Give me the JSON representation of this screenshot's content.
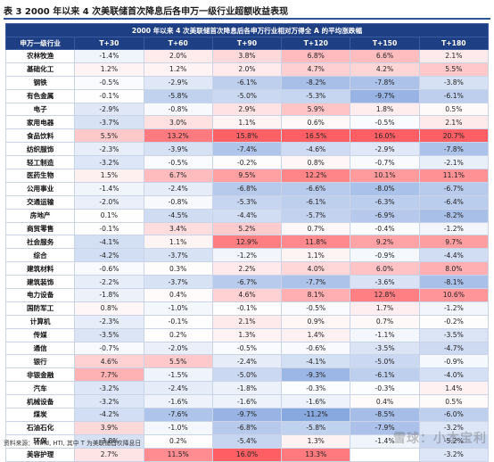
{
  "caption": "表 3  2000 年以来 4 次美联储首次降息后各申万一级行业超额收益表现",
  "table": {
    "title": "2000 年以来 4 次美联储首次降息后各申万行业相对万得全 A 的平均涨跌幅",
    "headers": [
      "申万一级行业",
      "T+30",
      "T+60",
      "T+90",
      "T+120",
      "T+150",
      "T+180"
    ],
    "rows": [
      {
        "name": "农林牧渔",
        "values": [
          "-1.4%",
          "2.0%",
          "3.8%",
          "6.8%",
          "6.6%",
          "2.1%"
        ],
        "nums": [
          -1.4,
          2.0,
          3.8,
          6.8,
          6.6,
          2.1
        ]
      },
      {
        "name": "基础化工",
        "values": [
          "1.2%",
          "1.2%",
          "2.0%",
          "4.7%",
          "4.2%",
          "5.5%"
        ],
        "nums": [
          1.2,
          1.2,
          2.0,
          4.7,
          4.2,
          5.5
        ]
      },
      {
        "name": "钢铁",
        "values": [
          "-0.5%",
          "-2.9%",
          "-6.1%",
          "-8.2%",
          "-7.8%",
          "-3.8%"
        ],
        "nums": [
          -0.5,
          -2.9,
          -6.1,
          -8.2,
          -7.8,
          -3.8
        ]
      },
      {
        "name": "有色金属",
        "values": [
          "-0.1%",
          "-5.8%",
          "-5.0%",
          "-5.3%",
          "-9.7%",
          "-6.1%"
        ],
        "nums": [
          -0.1,
          -5.8,
          -5.0,
          -5.3,
          -9.7,
          -6.1
        ]
      },
      {
        "name": "电子",
        "values": [
          "-2.9%",
          "-0.8%",
          "2.9%",
          "5.9%",
          "1.8%",
          "0.5%"
        ],
        "nums": [
          -2.9,
          -0.8,
          2.9,
          5.9,
          1.8,
          0.5
        ]
      },
      {
        "name": "家用电器",
        "values": [
          "-3.7%",
          "3.0%",
          "1.1%",
          "0.6%",
          "-0.5%",
          "2.1%"
        ],
        "nums": [
          -3.7,
          3.0,
          1.1,
          0.6,
          -0.5,
          2.1
        ]
      },
      {
        "name": "食品饮料",
        "values": [
          "5.5%",
          "13.2%",
          "15.8%",
          "16.5%",
          "16.0%",
          "20.7%"
        ],
        "nums": [
          5.5,
          13.2,
          15.8,
          16.5,
          16.0,
          20.7
        ]
      },
      {
        "name": "纺织服饰",
        "values": [
          "-2.3%",
          "-3.9%",
          "-7.4%",
          "-4.6%",
          "-2.9%",
          "-7.8%"
        ],
        "nums": [
          -2.3,
          -3.9,
          -7.4,
          -4.6,
          -2.9,
          -7.8
        ]
      },
      {
        "name": "轻工制造",
        "values": [
          "-3.2%",
          "-0.5%",
          "-0.2%",
          "0.8%",
          "-0.7%",
          "-2.1%"
        ],
        "nums": [
          -3.2,
          -0.5,
          -0.2,
          0.8,
          -0.7,
          -2.1
        ]
      },
      {
        "name": "医药生物",
        "values": [
          "1.5%",
          "6.7%",
          "9.5%",
          "12.2%",
          "10.1%",
          "11.1%"
        ],
        "nums": [
          1.5,
          6.7,
          9.5,
          12.2,
          10.1,
          11.1
        ]
      },
      {
        "name": "公用事业",
        "values": [
          "-1.4%",
          "-2.4%",
          "-6.8%",
          "-6.6%",
          "-8.0%",
          "-6.7%"
        ],
        "nums": [
          -1.4,
          -2.4,
          -6.8,
          -6.6,
          -8.0,
          -6.7
        ]
      },
      {
        "name": "交通运输",
        "values": [
          "-2.0%",
          "-0.8%",
          "-5.3%",
          "-6.1%",
          "-6.3%",
          "-6.4%"
        ],
        "nums": [
          -2.0,
          -0.8,
          -5.3,
          -6.1,
          -6.3,
          -6.4
        ]
      },
      {
        "name": "房地产",
        "values": [
          "0.1%",
          "-4.5%",
          "-4.4%",
          "-5.7%",
          "-6.9%",
          "-8.2%"
        ],
        "nums": [
          0.1,
          -4.5,
          -4.4,
          -5.7,
          -6.9,
          -8.2
        ]
      },
      {
        "name": "商贸零售",
        "values": [
          "-0.1%",
          "3.4%",
          "5.2%",
          "0.7%",
          "-0.4%",
          "-1.2%"
        ],
        "nums": [
          -0.1,
          3.4,
          5.2,
          0.7,
          -0.4,
          -1.2
        ]
      },
      {
        "name": "社会服务",
        "values": [
          "-4.1%",
          "1.1%",
          "12.9%",
          "11.8%",
          "9.2%",
          "9.7%"
        ],
        "nums": [
          -4.1,
          1.1,
          12.9,
          11.8,
          9.2,
          9.7
        ]
      },
      {
        "name": "综合",
        "values": [
          "-4.2%",
          "-3.7%",
          "-1.2%",
          "1.1%",
          "-0.9%",
          "-4.4%"
        ],
        "nums": [
          -4.2,
          -3.7,
          -1.2,
          1.1,
          -0.9,
          -4.4
        ]
      },
      {
        "name": "建筑材料",
        "values": [
          "-0.6%",
          "0.3%",
          "2.2%",
          "4.0%",
          "6.0%",
          "8.0%"
        ],
        "nums": [
          -0.6,
          0.3,
          2.2,
          4.0,
          6.0,
          8.0
        ]
      },
      {
        "name": "建筑装饰",
        "values": [
          "-2.2%",
          "-3.7%",
          "-6.7%",
          "-7.7%",
          "-3.6%",
          "-8.1%"
        ],
        "nums": [
          -2.2,
          -3.7,
          -6.7,
          -7.7,
          -3.6,
          -8.1
        ]
      },
      {
        "name": "电力设备",
        "values": [
          "-1.8%",
          "0.4%",
          "4.6%",
          "8.1%",
          "12.8%",
          "10.6%"
        ],
        "nums": [
          -1.8,
          0.4,
          4.6,
          8.1,
          12.8,
          10.6
        ]
      },
      {
        "name": "国防军工",
        "values": [
          "0.8%",
          "-1.0%",
          "-0.1%",
          "-0.5%",
          "1.7%",
          "-1.2%"
        ],
        "nums": [
          0.8,
          -1.0,
          -0.1,
          -0.5,
          1.7,
          -1.2
        ]
      },
      {
        "name": "计算机",
        "values": [
          "-2.3%",
          "-0.1%",
          "2.1%",
          "0.9%",
          "0.7%",
          "-0.2%"
        ],
        "nums": [
          -2.3,
          -0.1,
          2.1,
          0.9,
          0.7,
          -0.2
        ]
      },
      {
        "name": "传媒",
        "values": [
          "-3.5%",
          "0.2%",
          "1.3%",
          "1.4%",
          "-1.1%",
          "-3.5%"
        ],
        "nums": [
          -3.5,
          0.2,
          1.3,
          1.4,
          -1.1,
          -3.5
        ]
      },
      {
        "name": "通信",
        "values": [
          "-0.7%",
          "-2.0%",
          "-0.5%",
          "-0.6%",
          "-3.5%",
          "-4.7%"
        ],
        "nums": [
          -0.7,
          -2.0,
          -0.5,
          -0.6,
          -3.5,
          -4.7
        ]
      },
      {
        "name": "银行",
        "values": [
          "4.6%",
          "5.5%",
          "-2.4%",
          "-4.1%",
          "-5.0%",
          "-0.9%"
        ],
        "nums": [
          4.6,
          5.5,
          -2.4,
          -4.1,
          -5.0,
          -0.9
        ]
      },
      {
        "name": "非银金融",
        "values": [
          "7.7%",
          "-1.5%",
          "-5.0%",
          "-9.3%",
          "-6.1%",
          "-4.0%"
        ],
        "nums": [
          7.7,
          -1.5,
          -5.0,
          -9.3,
          -6.1,
          -4.0
        ]
      },
      {
        "name": "汽车",
        "values": [
          "-3.2%",
          "-2.4%",
          "-1.8%",
          "-0.3%",
          "-0.3%",
          "1.4%"
        ],
        "nums": [
          -3.2,
          -2.4,
          -1.8,
          -0.3,
          -0.3,
          1.4
        ]
      },
      {
        "name": "机械设备",
        "values": [
          "-3.2%",
          "-1.6%",
          "-1.6%",
          "-1.6%",
          "0.4%",
          "0.5%"
        ],
        "nums": [
          -3.2,
          -1.6,
          -1.6,
          -1.6,
          0.4,
          0.5
        ]
      },
      {
        "name": "煤炭",
        "values": [
          "-4.2%",
          "-7.6%",
          "-9.7%",
          "-11.2%",
          "-8.5%",
          "-6.0%"
        ],
        "nums": [
          -4.2,
          -7.6,
          -9.7,
          -11.2,
          -8.5,
          -6.0
        ]
      },
      {
        "name": "石油石化",
        "values": [
          "3.9%",
          "-1.0%",
          "-6.8%",
          "-5.8%",
          "-7.9%",
          "-3.2%"
        ],
        "nums": [
          3.9,
          -1.0,
          -6.8,
          -5.8,
          -7.9,
          -3.2
        ]
      },
      {
        "name": "环保",
        "values": [
          "-3.8%",
          "0.2%",
          "-5.4%",
          "1.3%",
          "-1.4%",
          "-5.2%"
        ],
        "nums": [
          -3.8,
          0.2,
          -5.4,
          1.3,
          -1.4,
          -5.2
        ]
      },
      {
        "name": "美容护理",
        "values": [
          "2.7%",
          "11.5%",
          "16.0%",
          "13.3%",
          "",
          "-3.2%"
        ],
        "nums": [
          2.7,
          11.5,
          16.0,
          13.3,
          null,
          -3.2
        ]
      }
    ]
  },
  "colors": {
    "header_bg": "#1f3f84",
    "positive": "#e0565b",
    "negative": "#3b6cc4"
  },
  "footer": "资料来源：Wind, HTI, 其中 T 为美联储首次降息日",
  "watermark": "雪球：小本宝利"
}
